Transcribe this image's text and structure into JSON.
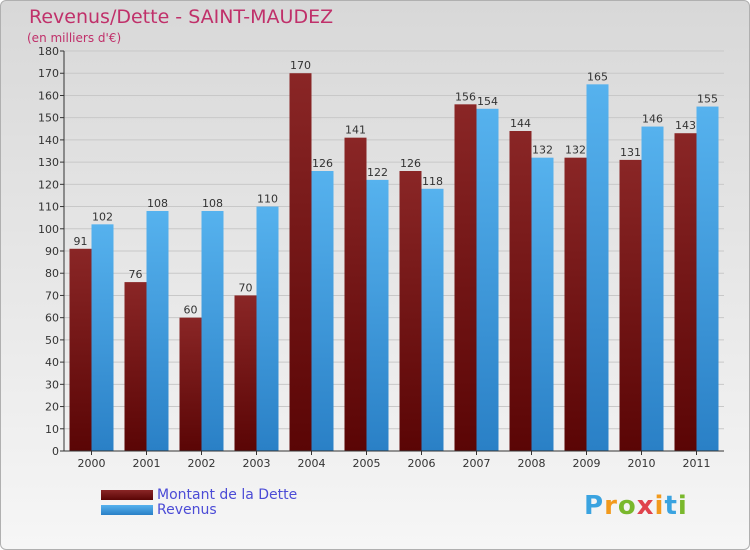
{
  "header": {
    "title": "Revenus/Dette - SAINT-MAUDEZ",
    "subtitle": "(en milliers d'€)"
  },
  "legend": {
    "items": [
      {
        "label": "Montant de la Dette",
        "color": "#6b1111"
      },
      {
        "label": "Revenus",
        "color": "#3f9ee0"
      }
    ]
  },
  "logo": {
    "text": "Proxiti",
    "colors": [
      "#3aa3e0",
      "#f29a1d",
      "#7ab82c",
      "#e0434c",
      "#f29a1d",
      "#3aa3e0",
      "#7ab82c"
    ]
  },
  "colors": {
    "dette": "#6b1111",
    "revenus": "#3f9ee0",
    "title": "#c0306a",
    "grid": "#c8c8c8"
  },
  "chart_data": {
    "type": "bar",
    "title": "Revenus/Dette - SAINT-MAUDEZ",
    "subtitle": "(en milliers d'€)",
    "categories": [
      "2000",
      "2001",
      "2002",
      "2003",
      "2004",
      "2005",
      "2006",
      "2007",
      "2008",
      "2009",
      "2010",
      "2011"
    ],
    "series": [
      {
        "name": "Montant de la Dette",
        "values": [
          91,
          76,
          60,
          70,
          170,
          141,
          126,
          156,
          144,
          132,
          131,
          143
        ]
      },
      {
        "name": "Revenus",
        "values": [
          102,
          108,
          108,
          110,
          126,
          122,
          118,
          154,
          132,
          165,
          146,
          155
        ]
      }
    ],
    "yticks": [
      0,
      10,
      20,
      30,
      40,
      50,
      60,
      70,
      80,
      90,
      100,
      110,
      120,
      130,
      140,
      150,
      160,
      170,
      180
    ],
    "ylim": [
      0,
      180
    ],
    "grid": true,
    "legend_position": "bottom-left"
  }
}
